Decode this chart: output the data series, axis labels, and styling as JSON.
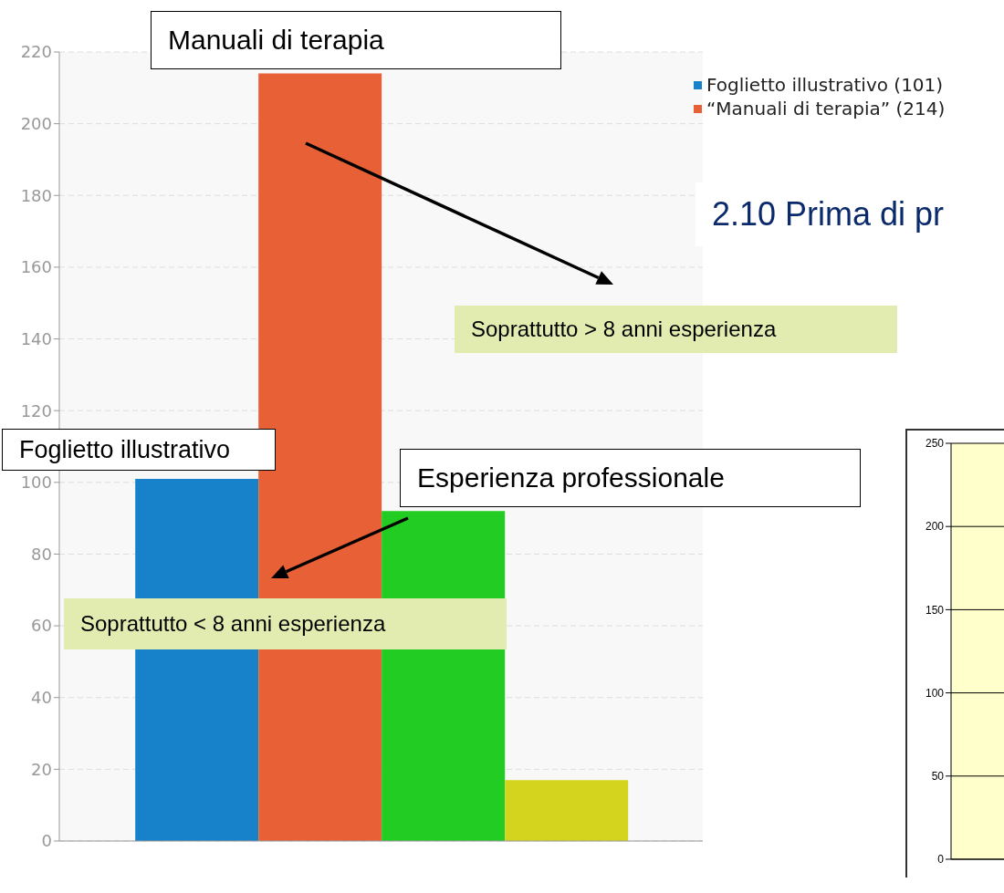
{
  "chart_data": [
    {
      "type": "bar",
      "categories": [
        null
      ],
      "series": [
        {
          "name": "Foglietto illustrativo (101)",
          "color": "#1781c9",
          "values": [
            101
          ]
        },
        {
          "name": "“Manuali di terapia” (214)",
          "color": "#e86035",
          "values": [
            214
          ]
        },
        {
          "color": "#22cc22",
          "values": [
            92
          ]
        },
        {
          "color": "#d4d41e",
          "values": [
            17
          ]
        }
      ],
      "ylim": [
        0,
        220
      ],
      "yticks": [
        0,
        20,
        40,
        60,
        80,
        100,
        120,
        140,
        160,
        180,
        200,
        220
      ],
      "grid": "y",
      "legend": "top right",
      "annotations": [
        "Manuali di terapia",
        "Foglietto illustrativo",
        "Esperienza professionale",
        "Soprattutto > 8 anni esperienza",
        "Soprattutto < 8 anni esperienza",
        "2.10 Prima di pr"
      ]
    },
    {
      "type": "bar",
      "categories": [
        null
      ],
      "values": [
        null
      ],
      "color": "#ffffcc",
      "ylim": [
        0,
        250
      ],
      "yticks": [
        0,
        50,
        100,
        150,
        200,
        250
      ],
      "grid": "y"
    }
  ]
}
